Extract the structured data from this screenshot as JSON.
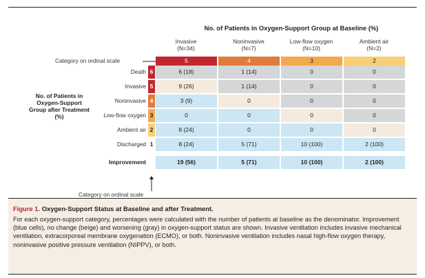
{
  "colors": {
    "ord5": "#c1272d",
    "ord4": "#e07b3c",
    "ord3": "#f3a94e",
    "ord2": "#f8cf77",
    "blue": "#cce6f3",
    "beige": "#f4ebde",
    "gray": "#d5d6d8",
    "improve": "#cce6f3",
    "ord_worse": "#c1272d",
    "ord_inv": "#c1272d",
    "ord_noninv": "#e07b3c",
    "ord_low": "#f3a94e",
    "ord_air": "#f8cf77",
    "ord_dis": "#ffffff"
  },
  "table": {
    "main_header": "No. of Patients in Oxygen-Support Group at Baseline (%)",
    "columns": [
      {
        "name": "Invasive",
        "n": "(N=34)",
        "ordinal": "5"
      },
      {
        "name": "Noninvasive",
        "n": "(N=7)",
        "ordinal": "4"
      },
      {
        "name": "Low-flow oxygen",
        "n": "(N=10)",
        "ordinal": "3"
      },
      {
        "name": "Ambient air",
        "n": "(N=2)",
        "ordinal": "2"
      }
    ],
    "category_top": "Category on ordinal scale",
    "category_bottom": "Category on ordinal scale",
    "group_label": "No. of Patients in Oxygen-Support Group after Treatment (%)",
    "rows": [
      {
        "label": "Death",
        "ordinal": "6",
        "cells": [
          "6 (18)",
          "1 (14)",
          "0",
          "0"
        ],
        "types": [
          "gray",
          "gray",
          "gray",
          "gray"
        ],
        "ordcolor": "ord_worse"
      },
      {
        "label": "Invasive",
        "ordinal": "5",
        "cells": [
          "9 (26)",
          "1 (14)",
          "0",
          "0"
        ],
        "types": [
          "beige",
          "gray",
          "gray",
          "gray"
        ],
        "ordcolor": "ord_inv"
      },
      {
        "label": "Noninvasive",
        "ordinal": "4",
        "cells": [
          "3 (9)",
          "0",
          "0",
          "0"
        ],
        "types": [
          "blue",
          "beige",
          "gray",
          "gray"
        ],
        "ordcolor": "ord_noninv"
      },
      {
        "label": "Low-flow oxygen",
        "ordinal": "3",
        "cells": [
          "0",
          "0",
          "0",
          "0"
        ],
        "types": [
          "blue",
          "blue",
          "beige",
          "gray"
        ],
        "ordcolor": "ord_low"
      },
      {
        "label": "Ambient air",
        "ordinal": "2",
        "cells": [
          "8 (24)",
          "0",
          "0",
          "0"
        ],
        "types": [
          "blue",
          "blue",
          "blue",
          "beige"
        ],
        "ordcolor": "ord_air"
      },
      {
        "label": "Discharged",
        "ordinal": "1",
        "cells": [
          "8 (24)",
          "5 (71)",
          "10 (100)",
          "2 (100)"
        ],
        "types": [
          "blue",
          "blue",
          "blue",
          "blue"
        ],
        "ordcolor": "ord_dis"
      }
    ],
    "improvement": {
      "label": "Improvement",
      "cells": [
        "19 (56)",
        "5 (71)",
        "10 (100)",
        "2 (100)"
      ]
    }
  },
  "caption": {
    "figure": "Figure 1.",
    "title": "Oxygen-Support Status at Baseline and after Treatment.",
    "body": "For each oxygen-support category, percentages were calculated with the number of patients at baseline as the denominator. Improvement (blue cells), no change (beige) and worsening (gray) in oxygen-support status are shown. Invasive ventilation includes invasive mechanical ventilation, extracorporeal membrane oxygenation (ECMO), or both. Noninvasive ventilation includes nasal high-flow oxygen therapy, noninvasive positive pressure ventilation (NIPPV), or both."
  }
}
